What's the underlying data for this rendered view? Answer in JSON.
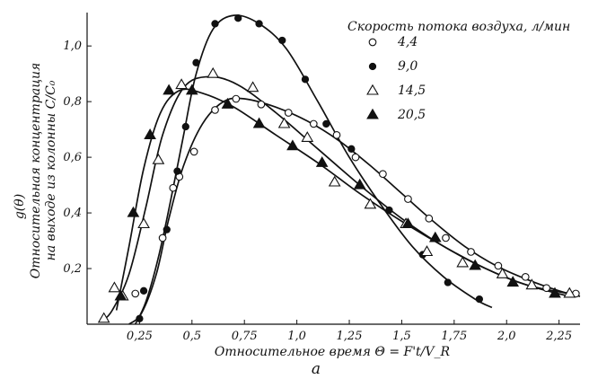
{
  "chart_data": {
    "type": "scatter",
    "panel_label": "a",
    "xlabel": "Относительное время  Θ = F't/V_R",
    "ylabel_lines": [
      "g(θ)",
      "Относительная концентрация",
      "на выходе из колонны  C/C₀"
    ],
    "legend_title": "Скорость потока воздуха, л/мин",
    "legend_position": "top-right",
    "grid": false,
    "xlim": [
      0,
      2.35
    ],
    "ylim": [
      0,
      1.12
    ],
    "xticks": [
      {
        "v": 0.25,
        "label": "0,25"
      },
      {
        "v": 0.5,
        "label": "0,5"
      },
      {
        "v": 0.75,
        "label": "0,75"
      },
      {
        "v": 1.0,
        "label": "1,0"
      },
      {
        "v": 1.25,
        "label": "1,25"
      },
      {
        "v": 1.5,
        "label": "1,5"
      },
      {
        "v": 1.75,
        "label": "1,75"
      },
      {
        "v": 2.0,
        "label": "2,0"
      },
      {
        "v": 2.25,
        "label": "2,25"
      }
    ],
    "yticks": [
      {
        "v": 0.2,
        "label": "0,2"
      },
      {
        "v": 0.4,
        "label": "0,4"
      },
      {
        "v": 0.6,
        "label": "0,6"
      },
      {
        "v": 0.8,
        "label": "0,8"
      },
      {
        "v": 1.0,
        "label": "1,0"
      }
    ],
    "series": [
      {
        "name": "4,4",
        "marker": "circle-open",
        "points": [
          [
            0.23,
            0.11
          ],
          [
            0.36,
            0.31
          ],
          [
            0.41,
            0.49
          ],
          [
            0.44,
            0.53
          ],
          [
            0.51,
            0.62
          ],
          [
            0.61,
            0.77
          ],
          [
            0.71,
            0.81
          ],
          [
            0.83,
            0.79
          ],
          [
            0.96,
            0.76
          ],
          [
            1.08,
            0.72
          ],
          [
            1.19,
            0.68
          ],
          [
            1.28,
            0.6
          ],
          [
            1.41,
            0.54
          ],
          [
            1.53,
            0.45
          ],
          [
            1.63,
            0.38
          ],
          [
            1.71,
            0.31
          ],
          [
            1.83,
            0.26
          ],
          [
            1.96,
            0.21
          ],
          [
            2.09,
            0.17
          ],
          [
            2.19,
            0.13
          ],
          [
            2.33,
            0.11
          ]
        ],
        "curve": [
          [
            0.2,
            0.0
          ],
          [
            0.26,
            0.04
          ],
          [
            0.33,
            0.18
          ],
          [
            0.39,
            0.38
          ],
          [
            0.46,
            0.57
          ],
          [
            0.55,
            0.72
          ],
          [
            0.65,
            0.8
          ],
          [
            0.75,
            0.81
          ],
          [
            0.9,
            0.78
          ],
          [
            1.05,
            0.73
          ],
          [
            1.2,
            0.66
          ],
          [
            1.35,
            0.57
          ],
          [
            1.5,
            0.47
          ],
          [
            1.65,
            0.37
          ],
          [
            1.8,
            0.28
          ],
          [
            1.95,
            0.21
          ],
          [
            2.1,
            0.16
          ],
          [
            2.25,
            0.12
          ],
          [
            2.35,
            0.1
          ]
        ]
      },
      {
        "name": "9,0",
        "marker": "circle-filled",
        "points": [
          [
            0.25,
            0.02
          ],
          [
            0.27,
            0.12
          ],
          [
            0.38,
            0.34
          ],
          [
            0.43,
            0.55
          ],
          [
            0.47,
            0.71
          ],
          [
            0.52,
            0.94
          ],
          [
            0.61,
            1.08
          ],
          [
            0.72,
            1.1
          ],
          [
            0.82,
            1.08
          ],
          [
            0.93,
            1.02
          ],
          [
            1.04,
            0.88
          ],
          [
            1.14,
            0.72
          ],
          [
            1.26,
            0.63
          ],
          [
            1.44,
            0.41
          ],
          [
            1.6,
            0.25
          ],
          [
            1.72,
            0.15
          ],
          [
            1.87,
            0.09
          ]
        ],
        "curve": [
          [
            0.23,
            0.0
          ],
          [
            0.28,
            0.08
          ],
          [
            0.34,
            0.24
          ],
          [
            0.4,
            0.45
          ],
          [
            0.46,
            0.68
          ],
          [
            0.52,
            0.9
          ],
          [
            0.6,
            1.06
          ],
          [
            0.7,
            1.11
          ],
          [
            0.82,
            1.08
          ],
          [
            0.95,
            0.99
          ],
          [
            1.1,
            0.8
          ],
          [
            1.25,
            0.6
          ],
          [
            1.4,
            0.43
          ],
          [
            1.55,
            0.28
          ],
          [
            1.7,
            0.17
          ],
          [
            1.85,
            0.09
          ],
          [
            1.93,
            0.06
          ]
        ]
      },
      {
        "name": "14,5",
        "marker": "triangle-open",
        "points": [
          [
            0.08,
            0.02
          ],
          [
            0.13,
            0.13
          ],
          [
            0.17,
            0.1
          ],
          [
            0.27,
            0.36
          ],
          [
            0.34,
            0.59
          ],
          [
            0.45,
            0.86
          ],
          [
            0.6,
            0.9
          ],
          [
            0.79,
            0.85
          ],
          [
            0.94,
            0.72
          ],
          [
            1.05,
            0.67
          ],
          [
            1.18,
            0.51
          ],
          [
            1.35,
            0.43
          ],
          [
            1.52,
            0.36
          ],
          [
            1.62,
            0.26
          ],
          [
            1.79,
            0.22
          ],
          [
            1.98,
            0.18
          ],
          [
            2.12,
            0.14
          ],
          [
            2.3,
            0.11
          ]
        ],
        "curve": [
          [
            0.07,
            0.01
          ],
          [
            0.12,
            0.05
          ],
          [
            0.2,
            0.18
          ],
          [
            0.28,
            0.42
          ],
          [
            0.36,
            0.68
          ],
          [
            0.46,
            0.85
          ],
          [
            0.58,
            0.89
          ],
          [
            0.72,
            0.86
          ],
          [
            0.9,
            0.76
          ],
          [
            1.1,
            0.63
          ],
          [
            1.3,
            0.5
          ],
          [
            1.5,
            0.38
          ],
          [
            1.7,
            0.28
          ],
          [
            1.9,
            0.2
          ],
          [
            2.1,
            0.14
          ],
          [
            2.3,
            0.11
          ]
        ]
      },
      {
        "name": "20,5",
        "marker": "triangle-filled",
        "points": [
          [
            0.16,
            0.1
          ],
          [
            0.22,
            0.4
          ],
          [
            0.3,
            0.68
          ],
          [
            0.39,
            0.84
          ],
          [
            0.5,
            0.84
          ],
          [
            0.67,
            0.79
          ],
          [
            0.82,
            0.72
          ],
          [
            0.98,
            0.64
          ],
          [
            1.12,
            0.58
          ],
          [
            1.3,
            0.5
          ],
          [
            1.53,
            0.36
          ],
          [
            1.66,
            0.31
          ],
          [
            1.85,
            0.21
          ],
          [
            2.03,
            0.15
          ],
          [
            2.23,
            0.11
          ]
        ],
        "curve": [
          [
            0.14,
            0.05
          ],
          [
            0.2,
            0.28
          ],
          [
            0.27,
            0.56
          ],
          [
            0.35,
            0.76
          ],
          [
            0.44,
            0.84
          ],
          [
            0.55,
            0.83
          ],
          [
            0.7,
            0.78
          ],
          [
            0.9,
            0.68
          ],
          [
            1.1,
            0.58
          ],
          [
            1.3,
            0.47
          ],
          [
            1.5,
            0.37
          ],
          [
            1.7,
            0.28
          ],
          [
            1.9,
            0.2
          ],
          [
            2.1,
            0.14
          ],
          [
            2.3,
            0.1
          ]
        ]
      }
    ]
  }
}
